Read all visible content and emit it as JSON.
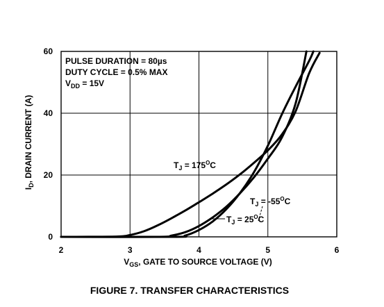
{
  "chart_data": {
    "type": "line",
    "title": "",
    "caption": "FIGURE 7.  TRANSFER CHARACTERISTICS",
    "xlabel": {
      "main": "V",
      "sub": "GS",
      "rest": ", GATE TO SOURCE VOLTAGE (V)"
    },
    "ylabel": {
      "main": "I",
      "sub": "D",
      "rest": ", DRAIN CURRENT (A)"
    },
    "xlim": [
      2,
      6
    ],
    "ylim": [
      0,
      60
    ],
    "grid": true,
    "x_ticks": [
      "2",
      "3",
      "4",
      "5",
      "6"
    ],
    "y_ticks": [
      "0",
      "20",
      "40",
      "60"
    ],
    "conditions": [
      {
        "main": "PULSE DURATION = 80",
        "mu": "µ",
        "rest": "s"
      },
      {
        "main": "DUTY CYCLE = 0.5% MAX"
      },
      {
        "main": "V",
        "sub": "DD",
        "rest": " = 15V"
      }
    ],
    "series": [
      {
        "name": "TJ = 175°C",
        "label": {
          "main": "T",
          "sub": "J",
          "rest": " = 175",
          "sup": "O",
          "tail": "C"
        },
        "x": [
          2.0,
          2.8,
          3.0,
          3.2,
          3.4,
          3.6,
          3.8,
          4.0,
          4.2,
          4.4,
          4.6,
          4.8,
          5.0,
          5.2,
          5.4,
          5.6,
          5.75
        ],
        "y": [
          0,
          0.1,
          0.6,
          1.8,
          3.7,
          6.0,
          8.5,
          11.2,
          14.0,
          17.0,
          20.3,
          24.0,
          28.0,
          33.0,
          40.5,
          53.0,
          59.5
        ]
      },
      {
        "name": "TJ = -55°C",
        "label": {
          "main": "T",
          "sub": "J",
          "rest": " = -55",
          "sup": "O",
          "tail": "C"
        },
        "x": [
          2.0,
          3.4,
          3.6,
          3.8,
          4.0,
          4.2,
          4.4,
          4.6,
          4.8,
          5.0,
          5.2,
          5.4,
          5.56
        ],
        "y": [
          0,
          0,
          0.4,
          1.5,
          3.5,
          6.3,
          9.8,
          14.2,
          19.3,
          25.3,
          32.0,
          43.0,
          60
        ]
      },
      {
        "name": "TJ = 25°C",
        "label": {
          "main": "T",
          "sub": "J",
          "rest": " = 25",
          "sup": "O",
          "tail": "C"
        },
        "x": [
          2.0,
          3.65,
          3.8,
          4.0,
          4.2,
          4.4,
          4.6,
          4.8,
          5.0,
          5.2,
          5.4,
          5.6,
          5.66
        ],
        "y": [
          0,
          0,
          0.4,
          2.2,
          5.0,
          9.0,
          14.3,
          21.0,
          29.5,
          39.5,
          48.5,
          57.0,
          60
        ]
      }
    ]
  }
}
